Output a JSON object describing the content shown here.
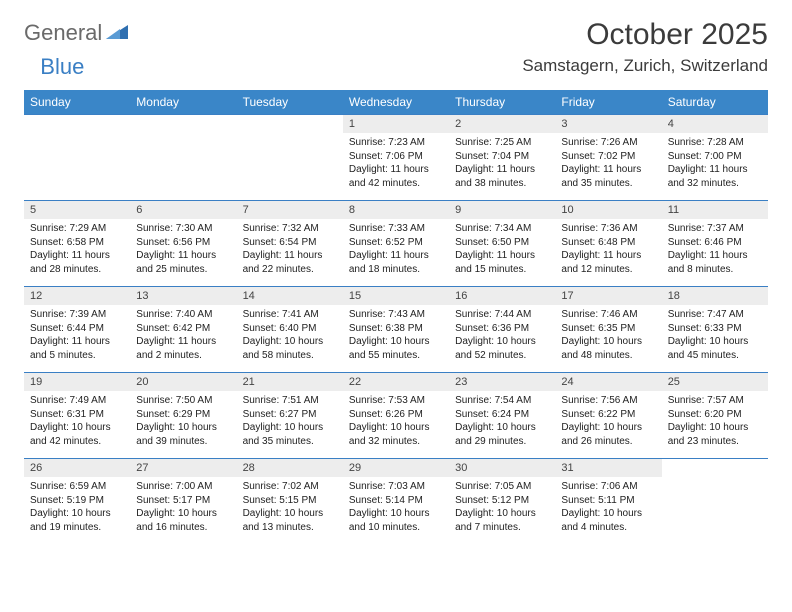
{
  "logo": {
    "general": "General",
    "blue": "Blue"
  },
  "title": "October 2025",
  "location": "Samstagern, Zurich, Switzerland",
  "colors": {
    "header_bg": "#3a86c8",
    "header_text": "#ffffff",
    "daynum_bg": "#ededed",
    "border": "#3a7fc4",
    "logo_gray": "#6a6a6a",
    "logo_blue": "#3a7fc4"
  },
  "weekdays": [
    "Sunday",
    "Monday",
    "Tuesday",
    "Wednesday",
    "Thursday",
    "Friday",
    "Saturday"
  ],
  "weeks": [
    [
      null,
      null,
      null,
      {
        "n": "1",
        "sr": "Sunrise: 7:23 AM",
        "ss": "Sunset: 7:06 PM",
        "d1": "Daylight: 11 hours",
        "d2": "and 42 minutes."
      },
      {
        "n": "2",
        "sr": "Sunrise: 7:25 AM",
        "ss": "Sunset: 7:04 PM",
        "d1": "Daylight: 11 hours",
        "d2": "and 38 minutes."
      },
      {
        "n": "3",
        "sr": "Sunrise: 7:26 AM",
        "ss": "Sunset: 7:02 PM",
        "d1": "Daylight: 11 hours",
        "d2": "and 35 minutes."
      },
      {
        "n": "4",
        "sr": "Sunrise: 7:28 AM",
        "ss": "Sunset: 7:00 PM",
        "d1": "Daylight: 11 hours",
        "d2": "and 32 minutes."
      }
    ],
    [
      {
        "n": "5",
        "sr": "Sunrise: 7:29 AM",
        "ss": "Sunset: 6:58 PM",
        "d1": "Daylight: 11 hours",
        "d2": "and 28 minutes."
      },
      {
        "n": "6",
        "sr": "Sunrise: 7:30 AM",
        "ss": "Sunset: 6:56 PM",
        "d1": "Daylight: 11 hours",
        "d2": "and 25 minutes."
      },
      {
        "n": "7",
        "sr": "Sunrise: 7:32 AM",
        "ss": "Sunset: 6:54 PM",
        "d1": "Daylight: 11 hours",
        "d2": "and 22 minutes."
      },
      {
        "n": "8",
        "sr": "Sunrise: 7:33 AM",
        "ss": "Sunset: 6:52 PM",
        "d1": "Daylight: 11 hours",
        "d2": "and 18 minutes."
      },
      {
        "n": "9",
        "sr": "Sunrise: 7:34 AM",
        "ss": "Sunset: 6:50 PM",
        "d1": "Daylight: 11 hours",
        "d2": "and 15 minutes."
      },
      {
        "n": "10",
        "sr": "Sunrise: 7:36 AM",
        "ss": "Sunset: 6:48 PM",
        "d1": "Daylight: 11 hours",
        "d2": "and 12 minutes."
      },
      {
        "n": "11",
        "sr": "Sunrise: 7:37 AM",
        "ss": "Sunset: 6:46 PM",
        "d1": "Daylight: 11 hours",
        "d2": "and 8 minutes."
      }
    ],
    [
      {
        "n": "12",
        "sr": "Sunrise: 7:39 AM",
        "ss": "Sunset: 6:44 PM",
        "d1": "Daylight: 11 hours",
        "d2": "and 5 minutes."
      },
      {
        "n": "13",
        "sr": "Sunrise: 7:40 AM",
        "ss": "Sunset: 6:42 PM",
        "d1": "Daylight: 11 hours",
        "d2": "and 2 minutes."
      },
      {
        "n": "14",
        "sr": "Sunrise: 7:41 AM",
        "ss": "Sunset: 6:40 PM",
        "d1": "Daylight: 10 hours",
        "d2": "and 58 minutes."
      },
      {
        "n": "15",
        "sr": "Sunrise: 7:43 AM",
        "ss": "Sunset: 6:38 PM",
        "d1": "Daylight: 10 hours",
        "d2": "and 55 minutes."
      },
      {
        "n": "16",
        "sr": "Sunrise: 7:44 AM",
        "ss": "Sunset: 6:36 PM",
        "d1": "Daylight: 10 hours",
        "d2": "and 52 minutes."
      },
      {
        "n": "17",
        "sr": "Sunrise: 7:46 AM",
        "ss": "Sunset: 6:35 PM",
        "d1": "Daylight: 10 hours",
        "d2": "and 48 minutes."
      },
      {
        "n": "18",
        "sr": "Sunrise: 7:47 AM",
        "ss": "Sunset: 6:33 PM",
        "d1": "Daylight: 10 hours",
        "d2": "and 45 minutes."
      }
    ],
    [
      {
        "n": "19",
        "sr": "Sunrise: 7:49 AM",
        "ss": "Sunset: 6:31 PM",
        "d1": "Daylight: 10 hours",
        "d2": "and 42 minutes."
      },
      {
        "n": "20",
        "sr": "Sunrise: 7:50 AM",
        "ss": "Sunset: 6:29 PM",
        "d1": "Daylight: 10 hours",
        "d2": "and 39 minutes."
      },
      {
        "n": "21",
        "sr": "Sunrise: 7:51 AM",
        "ss": "Sunset: 6:27 PM",
        "d1": "Daylight: 10 hours",
        "d2": "and 35 minutes."
      },
      {
        "n": "22",
        "sr": "Sunrise: 7:53 AM",
        "ss": "Sunset: 6:26 PM",
        "d1": "Daylight: 10 hours",
        "d2": "and 32 minutes."
      },
      {
        "n": "23",
        "sr": "Sunrise: 7:54 AM",
        "ss": "Sunset: 6:24 PM",
        "d1": "Daylight: 10 hours",
        "d2": "and 29 minutes."
      },
      {
        "n": "24",
        "sr": "Sunrise: 7:56 AM",
        "ss": "Sunset: 6:22 PM",
        "d1": "Daylight: 10 hours",
        "d2": "and 26 minutes."
      },
      {
        "n": "25",
        "sr": "Sunrise: 7:57 AM",
        "ss": "Sunset: 6:20 PM",
        "d1": "Daylight: 10 hours",
        "d2": "and 23 minutes."
      }
    ],
    [
      {
        "n": "26",
        "sr": "Sunrise: 6:59 AM",
        "ss": "Sunset: 5:19 PM",
        "d1": "Daylight: 10 hours",
        "d2": "and 19 minutes."
      },
      {
        "n": "27",
        "sr": "Sunrise: 7:00 AM",
        "ss": "Sunset: 5:17 PM",
        "d1": "Daylight: 10 hours",
        "d2": "and 16 minutes."
      },
      {
        "n": "28",
        "sr": "Sunrise: 7:02 AM",
        "ss": "Sunset: 5:15 PM",
        "d1": "Daylight: 10 hours",
        "d2": "and 13 minutes."
      },
      {
        "n": "29",
        "sr": "Sunrise: 7:03 AM",
        "ss": "Sunset: 5:14 PM",
        "d1": "Daylight: 10 hours",
        "d2": "and 10 minutes."
      },
      {
        "n": "30",
        "sr": "Sunrise: 7:05 AM",
        "ss": "Sunset: 5:12 PM",
        "d1": "Daylight: 10 hours",
        "d2": "and 7 minutes."
      },
      {
        "n": "31",
        "sr": "Sunrise: 7:06 AM",
        "ss": "Sunset: 5:11 PM",
        "d1": "Daylight: 10 hours",
        "d2": "and 4 minutes."
      },
      null
    ]
  ]
}
